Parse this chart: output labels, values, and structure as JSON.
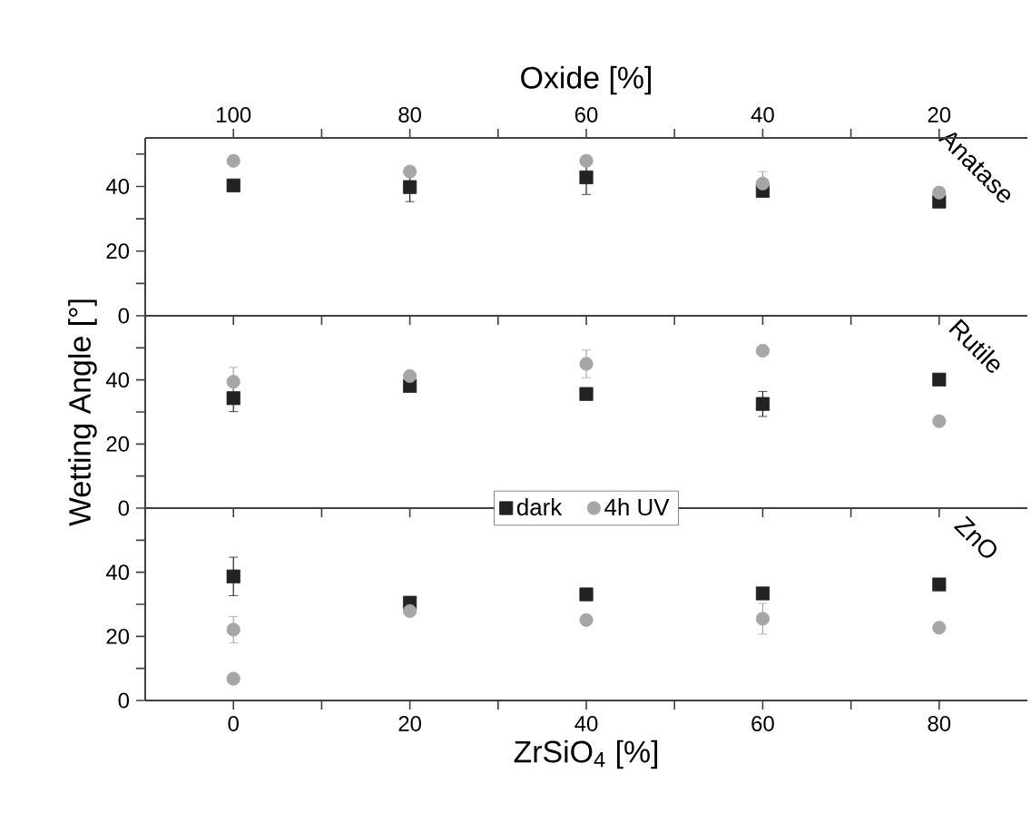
{
  "chart_data": [
    {
      "type": "scatter",
      "xlim": [
        -10,
        90
      ],
      "xticks": [
        0,
        {
          "value": 10,
          "label": null
        },
        20,
        {
          "value": 30,
          "label": null
        },
        40,
        {
          "value": 50,
          "label": null
        },
        60,
        {
          "value": 70,
          "label": null
        },
        80
      ],
      "x2lim": [
        110,
        10
      ],
      "x2ticks": [
        100,
        {
          "value": 90,
          "label": null
        },
        80,
        {
          "value": 70,
          "label": null
        },
        60,
        {
          "value": 50,
          "label": null
        },
        40,
        {
          "value": 30,
          "label": null
        },
        20
      ],
      "x2label": "Oxide [%]",
      "ylim": [
        0,
        55
      ],
      "yticks": [
        0,
        {
          "value": 10,
          "label": null
        },
        20,
        {
          "value": 30,
          "label": null
        },
        40,
        {
          "value": 50,
          "label": null
        }
      ],
      "tick_labels": "y",
      "annotations": [
        "Anatase"
      ],
      "series": [
        {
          "color": "#222222",
          "marker": "square",
          "x": [
            0,
            20,
            40,
            60,
            80
          ],
          "values": [
            40.3,
            39.8,
            42.8,
            38.6,
            35.3
          ],
          "errors": [
            null,
            4.5,
            5.3,
            null,
            null
          ]
        },
        {
          "color": "#a6a6a6",
          "marker": "circle",
          "x": [
            0,
            20,
            40,
            60,
            80
          ],
          "values": [
            47.9,
            44.6,
            47.9,
            40.9,
            38.1
          ],
          "errors": [
            null,
            null,
            null,
            3.7,
            null
          ]
        }
      ]
    },
    {
      "type": "scatter",
      "xlim": [
        -10,
        90
      ],
      "xticks": [
        0,
        {
          "value": 10,
          "label": null
        },
        20,
        {
          "value": 30,
          "label": null
        },
        40,
        {
          "value": 50,
          "label": null
        },
        60,
        {
          "value": 70,
          "label": null
        },
        80
      ],
      "ylim": [
        0,
        60
      ],
      "yticks": [
        0,
        {
          "value": 10,
          "label": null
        },
        20,
        {
          "value": 30,
          "label": null
        },
        40,
        {
          "value": 50,
          "label": null
        }
      ],
      "tick_labels": "y",
      "ylabel": "Wetting Angle [°]",
      "annotations": [
        "Rutile"
      ],
      "series": [
        {
          "color": "#222222",
          "marker": "square",
          "x": [
            0,
            20,
            40,
            60,
            80
          ],
          "values": [
            34.3,
            38.1,
            35.6,
            32.5,
            40.1
          ],
          "errors": [
            4.2,
            null,
            null,
            3.9,
            null
          ]
        },
        {
          "color": "#a6a6a6",
          "marker": "circle",
          "x": [
            0,
            20,
            40,
            60,
            80
          ],
          "values": [
            39.4,
            41.2,
            45,
            49.1,
            27.1
          ],
          "errors": [
            4.5,
            null,
            4.3,
            null,
            null
          ]
        }
      ]
    },
    {
      "type": "scatter",
      "xlim": [
        -10,
        90
      ],
      "xticks": [
        0,
        {
          "value": 10,
          "label": null
        },
        20,
        {
          "value": 30,
          "label": null
        },
        40,
        {
          "value": 50,
          "label": null
        },
        60,
        {
          "value": 70,
          "label": null
        },
        80
      ],
      "ylim": [
        0,
        60
      ],
      "yticks": [
        0,
        {
          "value": 10,
          "label": null
        },
        20,
        {
          "value": 30,
          "label": null
        },
        40,
        {
          "value": 50,
          "label": null
        }
      ],
      "xlabel": "ZrSiO$_{4}$ [%]",
      "annotations": [
        "ZnO"
      ],
      "legend": "top",
      "series": [
        {
          "name": "dark",
          "color": "#222222",
          "marker": "square",
          "x": [
            0,
            20,
            40,
            60,
            80
          ],
          "values": [
            38.7,
            30.5,
            33.1,
            33.4,
            36.2
          ],
          "errors": [
            6,
            null,
            null,
            null,
            null
          ]
        },
        {
          "name": "4h UV",
          "color": "#a6a6a6",
          "marker": "circle",
          "x": [
            0,
            0,
            20,
            40,
            60,
            80
          ],
          "values": [
            22.1,
            6.8,
            27.9,
            25.1,
            25.5,
            22.7
          ],
          "errors": [
            4.1,
            null,
            null,
            null,
            4.8,
            null
          ]
        }
      ]
    }
  ]
}
